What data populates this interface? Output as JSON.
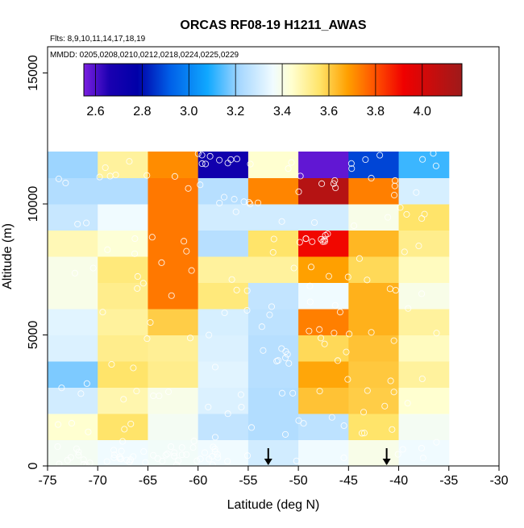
{
  "chart_data": {
    "type": "heatmap",
    "title": "ORCAS RF08-19 H1211_AWAS",
    "flights_note": "Flts: 8,9,10,11,14,17,18,19",
    "dates_note": "MMDD: 0205,0208,0210,0212,0218,0224,0225,0229",
    "xlabel": "Latitude (deg N)",
    "ylabel": "Altitude (m)",
    "xlim": [
      -75,
      -30
    ],
    "ylim": [
      0,
      16000
    ],
    "xticks": [
      -75,
      -70,
      -65,
      -60,
      -55,
      -50,
      -45,
      -40,
      -35,
      -30
    ],
    "yticks": [
      0,
      5000,
      10000,
      15000
    ],
    "x_edges": [
      -75,
      -70,
      -65,
      -60,
      -55,
      -50,
      -45,
      -40,
      -35
    ],
    "y_edges": [
      0,
      1000,
      2000,
      3000,
      4000,
      5000,
      6000,
      7000,
      8000,
      9000,
      10000,
      11000,
      12000
    ],
    "values": [
      [
        3.38,
        3.36,
        3.37,
        3.36,
        3.3,
        3.36,
        3.4,
        3.36
      ],
      [
        3.44,
        3.56,
        3.38,
        3.27,
        3.24,
        3.26,
        3.56,
        3.38
      ],
      [
        3.3,
        3.48,
        3.4,
        3.32,
        3.24,
        3.62,
        3.6,
        3.44
      ],
      [
        3.18,
        3.56,
        3.52,
        3.33,
        3.25,
        3.67,
        3.61,
        3.5
      ],
      [
        3.32,
        3.52,
        3.51,
        3.32,
        3.25,
        3.58,
        3.62,
        3.46
      ],
      [
        3.33,
        3.5,
        3.6,
        3.31,
        3.26,
        3.73,
        3.65,
        3.5
      ],
      [
        3.4,
        3.52,
        3.74,
        3.54,
        3.27,
        3.36,
        3.65,
        3.4
      ],
      [
        3.4,
        3.54,
        3.74,
        3.5,
        3.5,
        3.68,
        3.58,
        3.46
      ],
      [
        3.47,
        3.43,
        3.74,
        3.25,
        3.56,
        3.91,
        3.64,
        3.52
      ],
      [
        3.28,
        3.36,
        3.74,
        3.3,
        3.3,
        3.3,
        3.4,
        3.56
      ],
      [
        3.24,
        3.24,
        3.74,
        3.25,
        3.72,
        4.1,
        3.73,
        3.31
      ],
      [
        3.21,
        3.5,
        3.71,
        2.7,
        3.44,
        2.58,
        2.88,
        3.12
      ]
    ],
    "colorbar": {
      "range": [
        2.55,
        4.17
      ],
      "ticks": [
        2.6,
        2.8,
        3.0,
        3.2,
        3.4,
        3.6,
        3.8,
        4.0
      ],
      "tick_labels": [
        "2.6",
        "2.8",
        "3.0",
        "3.2",
        "3.4",
        "3.6",
        "3.8",
        "4.0"
      ],
      "stops": [
        {
          "v": 2.55,
          "c": "#7b1fe0"
        },
        {
          "v": 2.66,
          "c": "#1a00b0"
        },
        {
          "v": 2.78,
          "c": "#0000a8"
        },
        {
          "v": 2.92,
          "c": "#0060e8"
        },
        {
          "v": 3.08,
          "c": "#10a8ff"
        },
        {
          "v": 3.22,
          "c": "#a8d8ff"
        },
        {
          "v": 3.36,
          "c": "#f0fbff"
        },
        {
          "v": 3.44,
          "c": "#ffffd0"
        },
        {
          "v": 3.56,
          "c": "#ffe46a"
        },
        {
          "v": 3.68,
          "c": "#ffa000"
        },
        {
          "v": 3.8,
          "c": "#ff5000"
        },
        {
          "v": 3.92,
          "c": "#f00000"
        },
        {
          "v": 4.17,
          "c": "#9e1a1a"
        }
      ]
    },
    "arrows_at_latitude": [
      -53,
      -41.2
    ],
    "sample_point_color": "#ffffff"
  }
}
